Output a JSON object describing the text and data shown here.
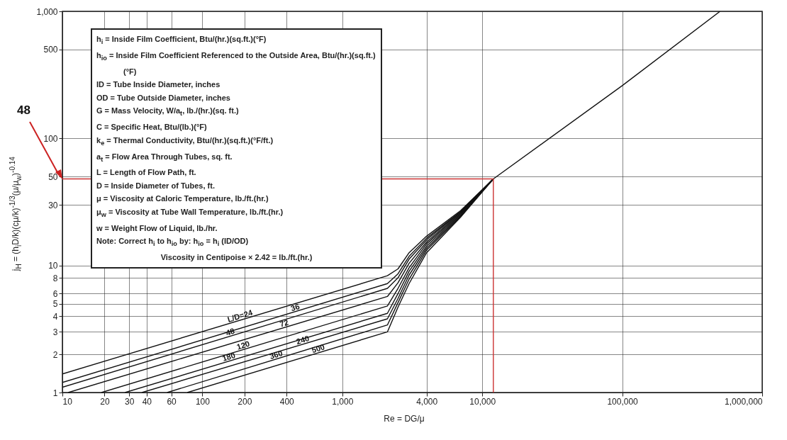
{
  "chart_data": {
    "type": "line",
    "xlabel": "Re = DG/μ",
    "ylabel": "j$_{H}$ = (h$_{i}$D/k)(cμ/k)$^{-1/3}$(μ/μ$_{w}$)$^{-0.14}$",
    "log": "xy",
    "grid": true,
    "xlim": [
      10,
      1000000
    ],
    "xticks": [
      10,
      20,
      30,
      40,
      60,
      100,
      200,
      400,
      {
        "value": 1000,
        "label": "1,000"
      },
      {
        "value": 4000,
        "label": "4,000"
      },
      {
        "value": 10000,
        "label": "10,000"
      },
      {
        "value": 100000,
        "label": "100,000"
      },
      {
        "value": 1000000,
        "label": "1,000,000"
      }
    ],
    "ylim": [
      1,
      1000
    ],
    "yticks": [
      1,
      2,
      3,
      4,
      5,
      6,
      8,
      10,
      30,
      50,
      100,
      500,
      {
        "value": 1000,
        "label": "1,000"
      }
    ],
    "series": [
      {
        "name": "L/D=24",
        "color": "#111111",
        "x": [
          10,
          2100,
          2500,
          3000,
          4000,
          7000,
          12000,
          100000,
          500000
        ],
        "values": [
          1.4,
          8.3,
          9.4,
          12.6,
          17,
          27,
          48,
          260,
          1000
        ]
      },
      {
        "name": "36",
        "color": "#111111",
        "x": [
          10,
          2100,
          2500,
          3000,
          4000,
          7000,
          12000
        ],
        "values": [
          1.2,
          7.2,
          8.6,
          11.8,
          16.4,
          26.6,
          48
        ]
      },
      {
        "name": "48",
        "color": "#111111",
        "x": [
          10,
          2100,
          2500,
          3000,
          4000,
          7000,
          12000
        ],
        "values": [
          1.1,
          6.6,
          8,
          11.2,
          15.9,
          26.3,
          48
        ]
      },
      {
        "name": "72",
        "color": "#111111",
        "x": [
          11,
          2100,
          2500,
          3000,
          4000,
          7000,
          12000
        ],
        "values": [
          1,
          5.7,
          7.3,
          10.4,
          15.3,
          25.9,
          48
        ]
      },
      {
        "name": "120",
        "color": "#111111",
        "x": [
          19,
          2100,
          2500,
          3000,
          4000,
          7000,
          12000
        ],
        "values": [
          1,
          4.8,
          6.6,
          9.6,
          14.8,
          25.5,
          48
        ]
      },
      {
        "name": "180",
        "color": "#111111",
        "x": [
          28,
          2100,
          2500,
          3000,
          4000,
          7000,
          12000
        ],
        "values": [
          1,
          4.2,
          6,
          9,
          14.2,
          25.1,
          48
        ]
      },
      {
        "name": "240",
        "color": "#111111",
        "x": [
          37,
          2100,
          2500,
          3000,
          4000,
          7000,
          12000
        ],
        "values": [
          1,
          3.8,
          5.5,
          8.4,
          13.7,
          24.7,
          48
        ]
      },
      {
        "name": "360",
        "color": "#111111",
        "x": [
          56,
          2100,
          2500,
          3000,
          4000,
          7000,
          12000
        ],
        "values": [
          1,
          3.4,
          5.1,
          7.8,
          13.2,
          24.3,
          48
        ]
      },
      {
        "name": "500",
        "color": "#111111",
        "x": [
          78,
          2100,
          2500,
          3000,
          4000,
          7000,
          12000
        ],
        "values": [
          1,
          3,
          4.7,
          7.2,
          12.6,
          24,
          48
        ]
      },
      {
        "color": "#cc3333",
        "x": [
          10,
          12000,
          12000
        ],
        "values": [
          48,
          48,
          1
        ]
      }
    ],
    "annotations": [
      "h$_{i}$ = Inside Film Coefficient, Btu/(hr.)(sq.ft.)(°F)",
      "h$_{io}$ = Inside Film Coefficient Referenced to the Outside Area, Btu/(hr.)(sq.ft.)(°F)",
      "ID = Tube Inside Diameter, inches",
      "OD = Tube Outside Diameter, inches",
      "G = Mass Velocity, W/a$_{t}$, lb./(hr.)(sq. ft.)",
      "C = Specific Heat, Btu/(lb.)(°F)",
      "k$_{e}$ = Thermal Conductivity, Btu/(hr.)(sq.ft.)(°F/ft.)",
      "a$_{t}$ = Flow Area Through Tubes, sq. ft.",
      "L = Length of Flow Path, ft.",
      "D = Inside Diameter of Tubes, ft.",
      "μ = Viscosity at Caloric Temperature, lb./ft.(hr.)",
      "μ$_{w}$ = Viscosity at Tube Wall Temperature, lb./ft.(hr.)",
      "w = Weight Flow of Liquid, lb./hr.",
      "Note: Correct h$_{i}$ to h$_{io}$ by: h$_{io}$ = h$_{i}$ (ID/OD)",
      "Viscosity in Centipoise × 2.42 = lb./ft.(hr.)",
      "48"
    ]
  }
}
